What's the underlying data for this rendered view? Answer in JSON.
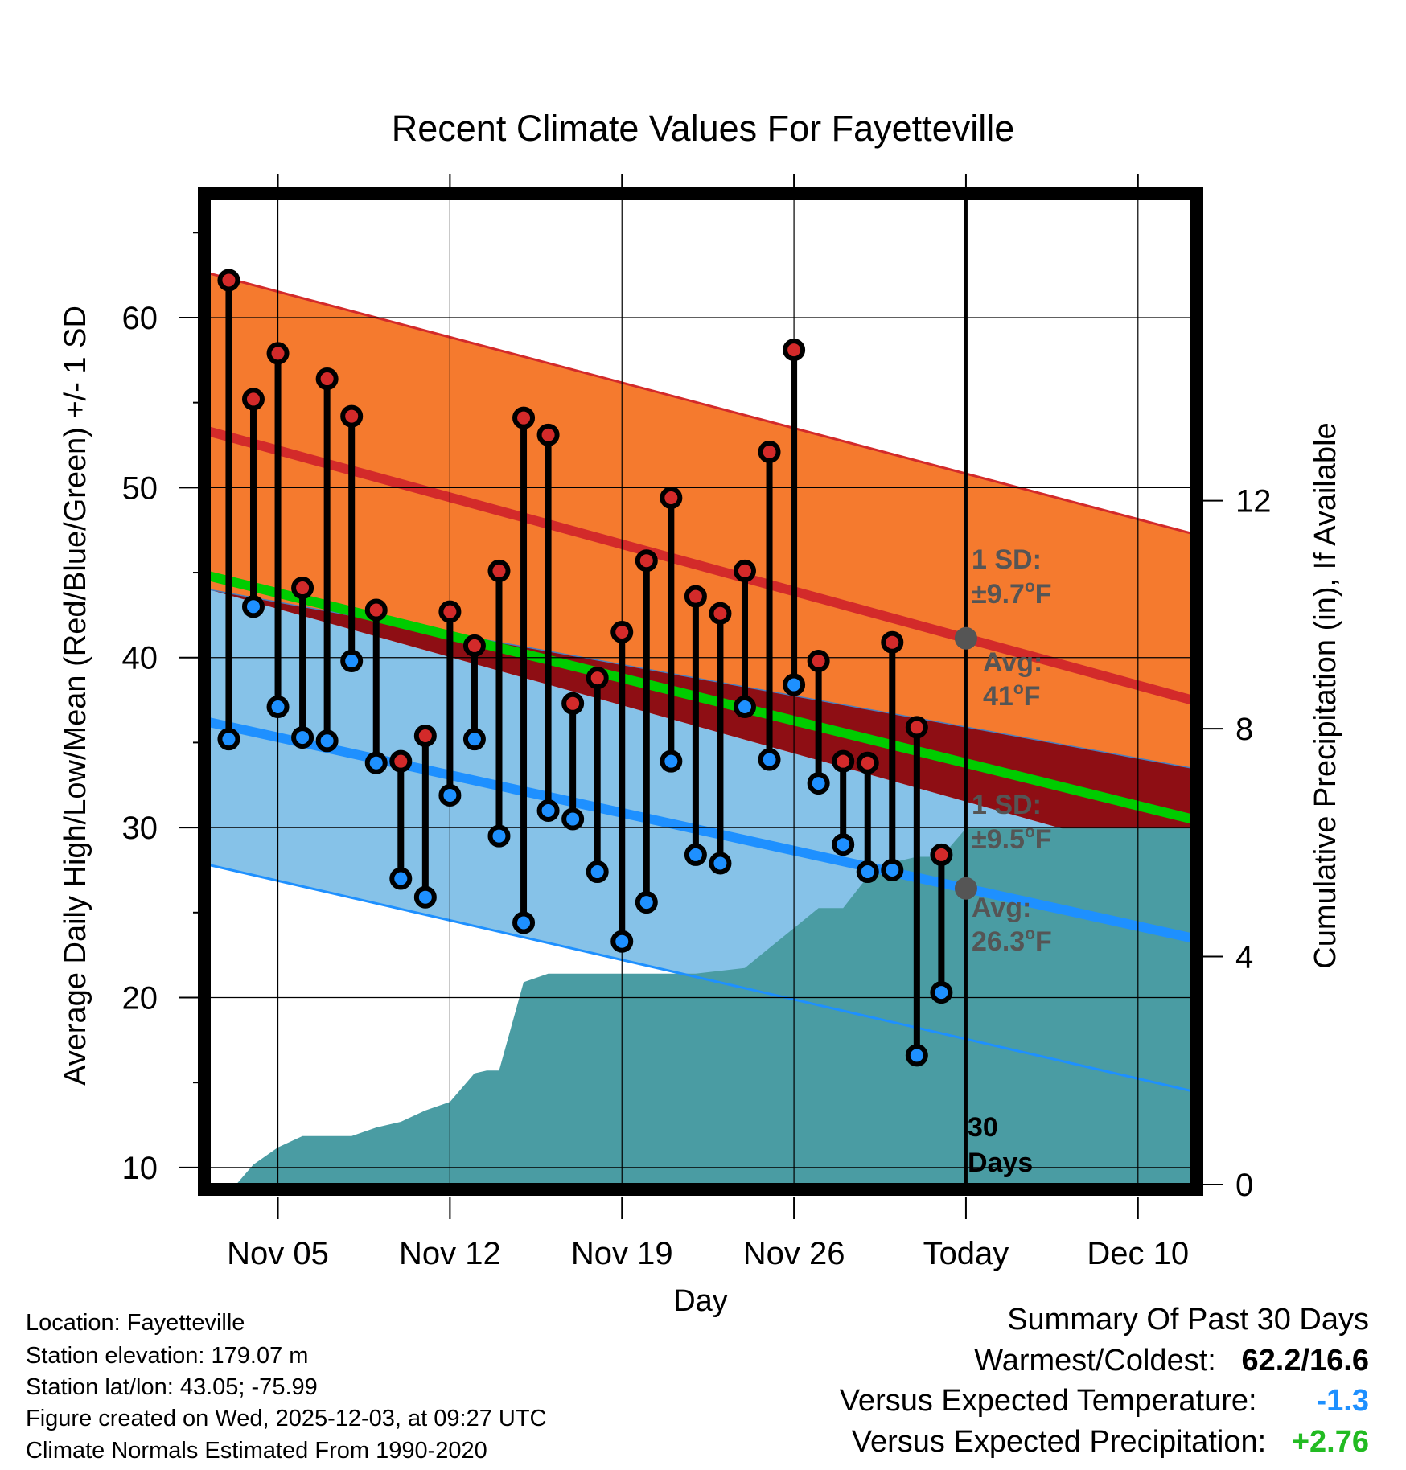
{
  "chart_data": {
    "type": "line",
    "title": "Recent Climate Values For Fayetteville",
    "xlabel": "Day",
    "ylabel": "Average Daily High/Low/Mean (Red/Blue/Green) +/- 1 SD",
    "y2label": "Cumulative Precipitation (in), If Available",
    "x_range": [
      -2.8,
      37.2
    ],
    "ylim": [
      9,
      67
    ],
    "y2lim": [
      0,
      17.3
    ],
    "y_ticks": [
      10,
      20,
      30,
      40,
      50,
      60
    ],
    "y2_ticks": [
      0,
      4,
      8,
      12
    ],
    "x_ticks": [
      {
        "day": 0,
        "label": "Nov 05"
      },
      {
        "day": 7,
        "label": "Nov 12"
      },
      {
        "day": 14,
        "label": "Nov 19"
      },
      {
        "day": 21,
        "label": "Nov 26"
      },
      {
        "day": 28,
        "label": "Today"
      },
      {
        "day": 35,
        "label": "Dec 10"
      }
    ],
    "today_day": 28,
    "normals": {
      "high_avg": {
        "start": 53.3,
        "end": 37.5
      },
      "high_plus": {
        "start": 62.6,
        "end": 47.3
      },
      "high_minus": {
        "start": 44.0,
        "end": 33.5
      },
      "low_avg": {
        "start": 36.2,
        "end": 23.5
      },
      "low_plus": {
        "start": 44.0,
        "end": 27.8
      },
      "low_minus": {
        "start": 27.8,
        "end": 14.5
      },
      "mean_avg": {
        "start": 44.8,
        "end": 30.5
      }
    },
    "days": [
      -2,
      -1,
      0,
      1,
      2,
      3,
      4,
      5,
      6,
      7,
      8,
      9,
      10,
      11,
      12,
      13,
      14,
      15,
      16,
      17,
      18,
      19,
      20,
      21,
      22,
      23,
      24,
      25,
      26,
      27
    ],
    "highs": [
      62.2,
      55.2,
      57.9,
      44.1,
      56.4,
      54.2,
      42.8,
      33.9,
      35.4,
      42.7,
      40.7,
      45.1,
      54.1,
      53.1,
      37.3,
      38.8,
      41.5,
      45.7,
      49.4,
      43.6,
      42.6,
      45.1,
      52.1,
      58.1,
      39.8,
      33.9,
      33.8,
      40.9,
      35.9,
      28.4
    ],
    "lows": [
      35.2,
      43.0,
      37.1,
      35.3,
      35.1,
      39.8,
      33.8,
      27.0,
      25.9,
      31.9,
      35.2,
      29.5,
      24.4,
      31.0,
      30.5,
      27.4,
      23.3,
      25.6,
      33.9,
      28.4,
      27.9,
      37.1,
      34.0,
      38.4,
      32.6,
      29.0,
      27.4,
      27.5,
      16.6,
      20.3
    ],
    "precip_cumulative": {
      "x": [
        -1.7,
        -1.0,
        0.0,
        1.0,
        2.0,
        3.0,
        4.0,
        5.0,
        6.0,
        7.0,
        8.0,
        8.5,
        9.0,
        10.0,
        11.0,
        12.0,
        13.0,
        14.0,
        15.0,
        16.0,
        17.0,
        18.0,
        19.0,
        20.0,
        21.0,
        22.0,
        23.0,
        24.0,
        25.0,
        26.0,
        27.0,
        28.0,
        37.2
      ],
      "values": [
        0.0,
        0.35,
        0.65,
        0.85,
        0.85,
        0.85,
        1.0,
        1.1,
        1.3,
        1.45,
        1.95,
        2.0,
        2.0,
        3.55,
        3.7,
        3.7,
        3.7,
        3.7,
        3.7,
        3.7,
        3.7,
        3.75,
        3.8,
        4.15,
        4.5,
        4.85,
        4.85,
        5.4,
        5.65,
        5.75,
        5.75,
        6.25,
        6.25
      ]
    },
    "annotations": {
      "high_sd": "1 SD:",
      "high_sd_value": "±9.7",
      "high_avg_label": "Avg:",
      "high_avg_value": "41",
      "low_sd": "1 SD:",
      "low_sd_value": "±9.5",
      "low_avg_label": "Avg:",
      "low_avg_value": "26.3",
      "deg_unit": "o",
      "temp_unit": "F",
      "days_count": "30",
      "days_word": "Days"
    },
    "colors": {
      "high_band": "#F57A2E",
      "high_line": "#D32A2A",
      "overlap": "#8E0E14",
      "low_band": "#86C2E8",
      "low_line": "#1E90FF",
      "mean_line": "#00CC00",
      "precip": "#4A9CA3",
      "annotation": "#555555",
      "high_marker": "#D32A2A",
      "low_marker": "#1E90FF"
    }
  },
  "info": {
    "location": "Location: Fayetteville",
    "elevation": "Station elevation: 179.07 m",
    "latlon": "Station lat/lon: 43.05; -75.99",
    "created": "Figure created on Wed, 2025-12-03, at 09:27 UTC",
    "normals": "Climate Normals Estimated From 1990-2020"
  },
  "summary": {
    "title": "Summary Of Past 30 Days",
    "warm_cold_label": "Warmest/Coldest:",
    "warm_cold_value": "62.2/16.6",
    "temp_label": "Versus Expected Temperature:",
    "temp_value": "-1.3",
    "temp_color": "#1E90FF",
    "precip_label": "Versus Expected Precipitation:",
    "precip_value": "+2.76",
    "precip_color": "#22BB22"
  }
}
